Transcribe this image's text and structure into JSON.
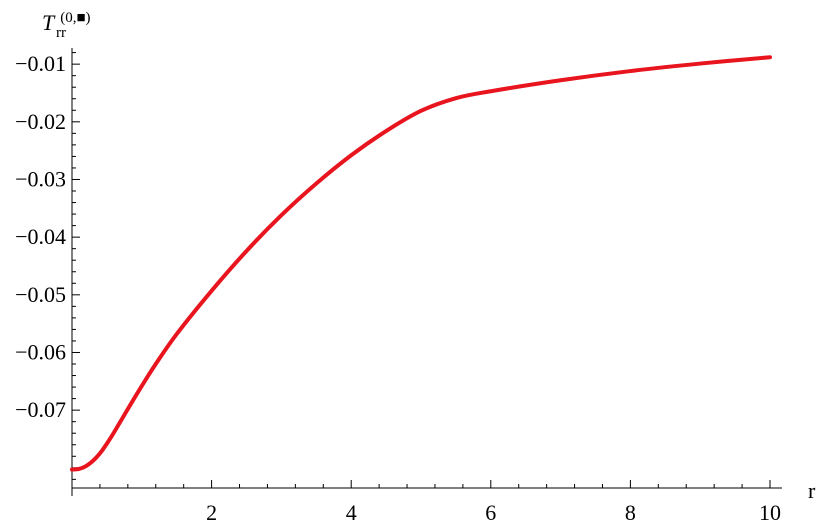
{
  "chart_data": {
    "type": "line",
    "title": "",
    "xlabel": "r",
    "ylabel": {
      "main": "T",
      "subscript": "rr",
      "superscript": "(0,■)"
    },
    "xlim": [
      0,
      10
    ],
    "ylim": [
      -0.0835,
      -0.0072
    ],
    "grid": false,
    "legend": "none",
    "x_ticks": [
      {
        "value": 2,
        "label": "2"
      },
      {
        "value": 4,
        "label": "4"
      },
      {
        "value": 6,
        "label": "6"
      },
      {
        "value": 8,
        "label": "8"
      },
      {
        "value": 10,
        "label": "10"
      }
    ],
    "y_ticks": [
      {
        "value": -0.07,
        "label": "−0.07"
      },
      {
        "value": -0.06,
        "label": "−0.06"
      },
      {
        "value": -0.05,
        "label": "−0.05"
      },
      {
        "value": -0.04,
        "label": "−0.04"
      },
      {
        "value": -0.03,
        "label": "−0.03"
      },
      {
        "value": -0.02,
        "label": "−0.02"
      },
      {
        "value": -0.01,
        "label": "−0.01"
      }
    ],
    "series": [
      {
        "color": "#e8141e",
        "x": [
          0.0,
          0.1,
          0.2,
          0.3,
          0.4,
          0.5,
          0.6,
          0.8,
          1.0,
          1.2,
          1.5,
          2.0,
          2.5,
          3.0,
          3.5,
          4.0,
          4.5,
          5.0,
          5.5,
          6.0,
          7.0,
          8.0,
          9.0,
          10.0
        ],
        "y": [
          -0.0803,
          -0.0802,
          -0.0797,
          -0.0788,
          -0.0775,
          -0.0758,
          -0.0739,
          -0.0698,
          -0.0658,
          -0.062,
          -0.0568,
          -0.0493,
          -0.0424,
          -0.0362,
          -0.0307,
          -0.0258,
          -0.0216,
          -0.0181,
          -0.0159,
          -0.0147,
          -0.0128,
          -0.0112,
          -0.0099,
          -0.0088
        ]
      }
    ]
  }
}
